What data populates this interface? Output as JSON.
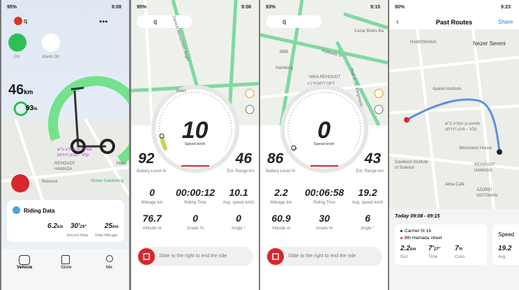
{
  "screens": [
    {
      "status": {
        "battery": "95%",
        "time": "9:08"
      },
      "device": "q",
      "power_label": "On",
      "alarm_label": "Alarm On",
      "range": {
        "value": "46",
        "unit": "km"
      },
      "battery": {
        "value": "93",
        "unit": "%"
      },
      "map_labels": [
        "Matsl",
        "Rehovot",
        "Sloner Gardening",
        "מוזיאון גן המדע ע\"ש",
        "קלור - מכון דוידסון",
        "REHOVOT",
        "HAMADA"
      ],
      "riding_data": {
        "title": "Riding Data",
        "distance": {
          "value": "6.2",
          "unit": "km"
        },
        "time": {
          "minutes": "30'",
          "seconds": "29''"
        },
        "total": {
          "value": "25",
          "unit": "km"
        },
        "recent_label": "Recent Ride",
        "total_label": "Total Mileage"
      },
      "nav": [
        "Vehicle",
        "Store",
        "Me"
      ]
    },
    {
      "status": {
        "battery": "95%",
        "time": "9:08"
      },
      "device": "q",
      "map_labels": [
        "Derech Menachem Begin",
        "Bitan"
      ],
      "speed": "10",
      "speed_label": "Speed·km/h",
      "battery_level": "92",
      "battery_label": "Battery Level·%",
      "range": "46",
      "range_label": "Est. Range·km",
      "stats": [
        {
          "value": "0",
          "label": "Mileage·km"
        },
        {
          "value": "00:00:12",
          "label": "Riding Time"
        },
        {
          "value": "10.1",
          "label": "Avg. speed·km/h"
        },
        {
          "value": "76.7",
          "label": "Altitude·m"
        },
        {
          "value": "0",
          "label": "Grade·%"
        },
        {
          "value": "0",
          "label": "Angle·°"
        }
      ],
      "slide": "Slide to the right to end the ride"
    },
    {
      "status": {
        "battery": "93%",
        "time": "9:15"
      },
      "device": "q",
      "map_labels": [
        "Cezar Bistro Ba",
        "HaMada St",
        "BBB",
        "Hamburg",
        "NIKA REHOVOT",
        "ניקה רחובות | ג'",
        "Prof. A. D. Bergmann"
      ],
      "speed": "0",
      "speed_label": "Speed·km/h",
      "battery_level": "86",
      "battery_label": "Battery Level·%",
      "range": "43",
      "range_label": "Est. Range·km",
      "stats": [
        {
          "value": "2.2",
          "label": "Mileage·km"
        },
        {
          "value": "00:06:58",
          "label": "Riding Time"
        },
        {
          "value": "19.2",
          "label": "Avg. speed·km/h"
        },
        {
          "value": "60.9",
          "label": "Altitude·m"
        },
        {
          "value": "30",
          "label": "Grade·%"
        },
        {
          "value": "6",
          "label": "Angle·°"
        }
      ],
      "slide": "Slide to the right to end the ride"
    },
    {
      "status": {
        "battery": "90%",
        "time": "9:23"
      },
      "title": "Past Routes",
      "share": "Share",
      "map_labels": [
        "HAMOSHAVA",
        "Nezer Sereni",
        "Ayalon Institute",
        "מוזיאון גן המדע ע\"ש",
        "קלור - מכון דוידסון",
        "Weizmann House",
        "Davidson Institute",
        "of Science",
        "REHOVOT",
        "HAMADA",
        "Alma Café",
        "AZOREI",
        "VAITSMAN"
      ],
      "date": "Today",
      "time_range": "09:08 - 09:15",
      "from": "Carmel St 16",
      "to": "8th Hamada street",
      "dist": {
        "value": "2.2",
        "unit": "km"
      },
      "time": {
        "minutes": "7'",
        "seconds": "27''"
      },
      "cons": {
        "value": "7",
        "unit": "%"
      },
      "dist_label": "Dist.",
      "time_label": "Time",
      "cons_label": "Cons.",
      "speed_title": "Speed",
      "speed_value": "19.2",
      "speed_label": "Avg."
    }
  ]
}
